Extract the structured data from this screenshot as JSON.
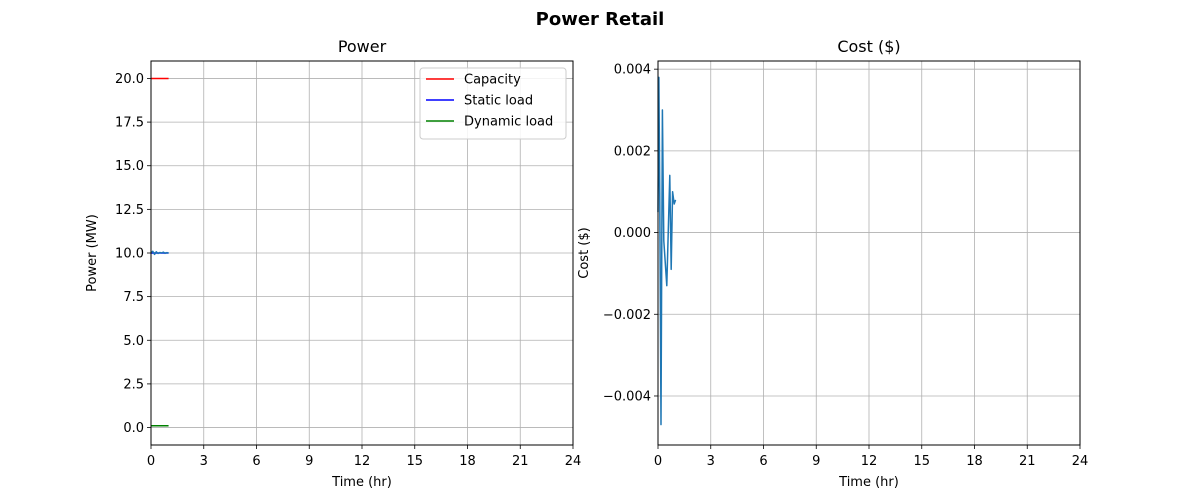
{
  "figure_title": "Power Retail",
  "chart_data": [
    {
      "type": "line",
      "title": "Power",
      "xlabel": "Time (hr)",
      "ylabel": "Power (MW)",
      "xlim": [
        0,
        24
      ],
      "ylim": [
        -1.0,
        21.0
      ],
      "xticks": [
        0,
        3,
        6,
        9,
        12,
        15,
        18,
        21,
        24
      ],
      "yticks": [
        0.0,
        2.5,
        5.0,
        7.5,
        10.0,
        12.5,
        15.0,
        17.5,
        20.0
      ],
      "ytick_labels": [
        "0.0",
        "2.5",
        "5.0",
        "7.5",
        "10.0",
        "12.5",
        "15.0",
        "17.5",
        "20.0"
      ],
      "grid": true,
      "legend": "top-right",
      "series": [
        {
          "name": "Capacity",
          "color": "#ff0000",
          "legend": true,
          "x": [
            0,
            1
          ],
          "y": [
            20,
            20
          ]
        },
        {
          "name": "Static load",
          "color": "#0000ff",
          "legend": true,
          "x": [
            0,
            1
          ],
          "y": [
            10,
            10
          ]
        },
        {
          "name": "Dynamic load",
          "color": "#008000",
          "legend": true,
          "x": [
            0,
            1
          ],
          "y": [
            0.1,
            0.1
          ]
        },
        {
          "color": "#1f77b4",
          "legend": false,
          "x": [
            0,
            0.1,
            0.2,
            0.3,
            0.4,
            0.5,
            0.6,
            0.7,
            0.8,
            0.9,
            1.0
          ],
          "y": [
            10.0,
            10.1,
            9.92,
            10.07,
            9.97,
            10.03,
            10.0,
            10.05,
            9.98,
            10.02,
            10.0
          ]
        }
      ]
    },
    {
      "type": "line",
      "title": "Cost ($)",
      "xlabel": "Time (hr)",
      "ylabel": "Cost ($)",
      "xlim": [
        0,
        24
      ],
      "ylim": [
        -0.0052,
        0.0042
      ],
      "xticks": [
        0,
        3,
        6,
        9,
        12,
        15,
        18,
        21,
        24
      ],
      "yticks": [
        -0.004,
        -0.002,
        0.0,
        0.002,
        0.004
      ],
      "ytick_labels": [
        "−0.004",
        "−0.002",
        "0.000",
        "0.002",
        "0.004"
      ],
      "grid": true,
      "series": [
        {
          "color": "#1f77b4",
          "x": [
            0,
            0.05,
            0.1,
            0.17,
            0.25,
            0.33,
            0.5,
            0.67,
            0.75,
            0.83,
            0.92,
            1.0
          ],
          "y": [
            0.0005,
            0.0038,
            0.0009,
            -0.0047,
            0.003,
            -0.0002,
            -0.0013,
            0.0014,
            -0.0009,
            0.001,
            0.0007,
            0.0008
          ]
        }
      ]
    }
  ]
}
